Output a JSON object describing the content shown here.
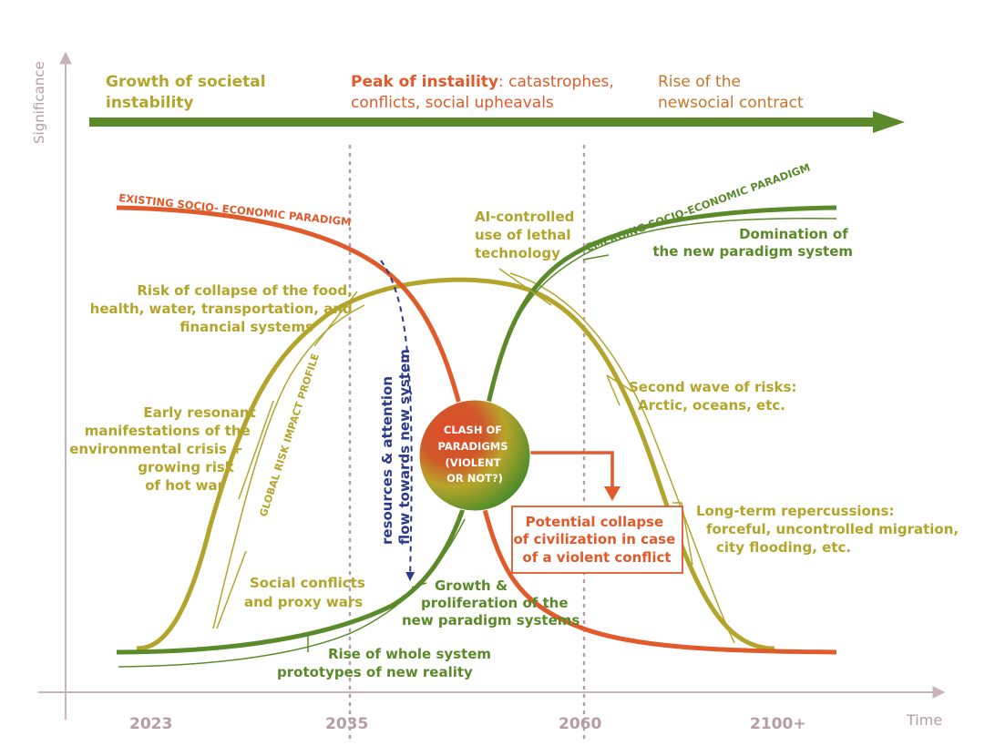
{
  "axes": {
    "y_label": "Significance",
    "x_label": "Time",
    "ticks": [
      "2023",
      "2035",
      "2060",
      "2100+"
    ]
  },
  "phases": {
    "growth": [
      "Growth of societal",
      "instability"
    ],
    "peak_bold": "Peak of instaility",
    "peak_rest": ": catastrophes,",
    "peak_line2": "conflicts, social upheavals",
    "rise": [
      "Rise of the",
      "newsocial contract"
    ]
  },
  "curves": {
    "existing": "EXISTING SOCIO- ECONOMIC PARADIGM",
    "emerging": "EMERGING SOCIO-ECONOMIC PARADIGM",
    "risk": "GLOBAL RISK IMPACT PROFILE"
  },
  "labels": {
    "collapse_risk": [
      "Risk of collapse of the food,",
      "health, water, transportation, and",
      "financial systems"
    ],
    "early": [
      "Early resonant",
      "manifestations of the",
      "environmental crisis +",
      "growing risk",
      "of hot war"
    ],
    "social": [
      "Social conflicts",
      "and proxy wars"
    ],
    "ai": [
      "AI-controlled",
      "use of lethal",
      "technology"
    ],
    "domination": [
      "Domination of",
      "the new paradigm system"
    ],
    "second": [
      "Second wave of risks:",
      "Arctic, oceans, etc."
    ],
    "longterm": [
      "Long-term repercussions:",
      "forceful, uncontrolled migration,",
      "city flooding, etc."
    ],
    "growth_prolif": [
      "Growth &",
      "proliferation of the",
      "new paradigm systems"
    ],
    "rise_whole": [
      "Rise of whole system",
      "prototypes of new reality"
    ],
    "resources": [
      "resources & attention",
      "flow towards new system"
    ],
    "clash": [
      "CLASH OF",
      "PARADIGMS",
      "(VIOLENT",
      "OR NOT?)"
    ],
    "potential": [
      "Potential collapse",
      "of civilization in case",
      "of a violent conflict"
    ]
  },
  "colors": {
    "red": "#e05a2b",
    "green": "#5a8a2a",
    "olive": "#b3a52b",
    "axis": "#c9b3b8",
    "navy": "#2b3a8a"
  }
}
